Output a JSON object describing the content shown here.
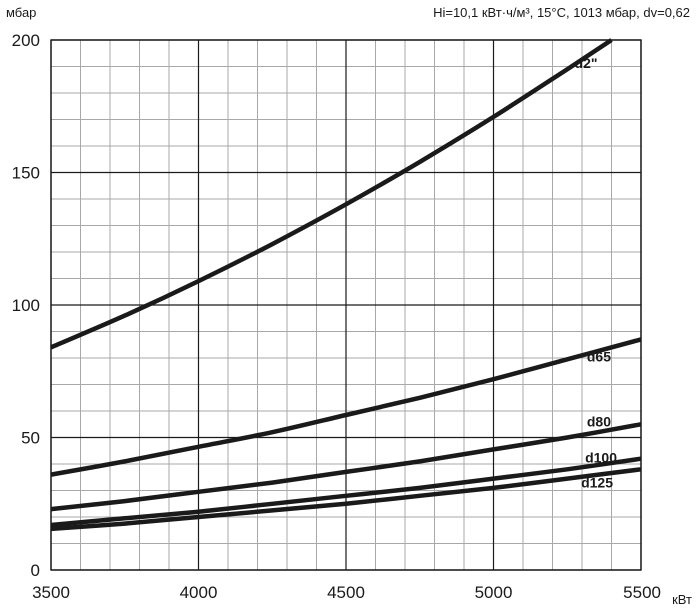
{
  "chart_data": {
    "type": "line",
    "title": "Hi=10,1 кВт·ч/м³, 15°C, 1013 мбар, dv=0,62",
    "xlabel": "кВт",
    "ylabel": "мбар",
    "xlim": [
      3500,
      5500
    ],
    "ylim": [
      0,
      200
    ],
    "x_ticks": [
      "3500",
      "4000",
      "4500",
      "5000",
      "5500"
    ],
    "y_ticks": [
      "0",
      "50",
      "100",
      "150",
      "200"
    ],
    "grid": true,
    "series": [
      {
        "name": "d2\"",
        "x": [
          3500,
          3750,
          4000,
          4250,
          4500,
          4750,
          5000,
          5250,
          5400
        ],
        "y": [
          84,
          96,
          109,
          123,
          138,
          154,
          171,
          189,
          200
        ]
      },
      {
        "name": "d65",
        "x": [
          3500,
          3750,
          4000,
          4250,
          4500,
          4750,
          5000,
          5250,
          5500
        ],
        "y": [
          36,
          41,
          46.5,
          52,
          58.5,
          65,
          72,
          79.5,
          87
        ]
      },
      {
        "name": "d80",
        "x": [
          3500,
          3750,
          4000,
          4250,
          4500,
          4750,
          5000,
          5250,
          5500
        ],
        "y": [
          23,
          26,
          29.5,
          33,
          37,
          41,
          45.5,
          50,
          55
        ]
      },
      {
        "name": "d100",
        "x": [
          3500,
          3750,
          4000,
          4250,
          4500,
          4750,
          5000,
          5250,
          5500
        ],
        "y": [
          17,
          19.5,
          22,
          25,
          28,
          31,
          34.5,
          38,
          42
        ]
      },
      {
        "name": "d125",
        "x": [
          3500,
          3750,
          4000,
          4250,
          4500,
          4750,
          5000,
          5250,
          5500
        ],
        "y": [
          15.5,
          17.5,
          20,
          22.5,
          25,
          28,
          31,
          34.5,
          38
        ]
      }
    ],
    "line_color": "#1a1a1a",
    "grid_color": "#a8a8a8",
    "major_grid_color": "#1a1a1a"
  }
}
